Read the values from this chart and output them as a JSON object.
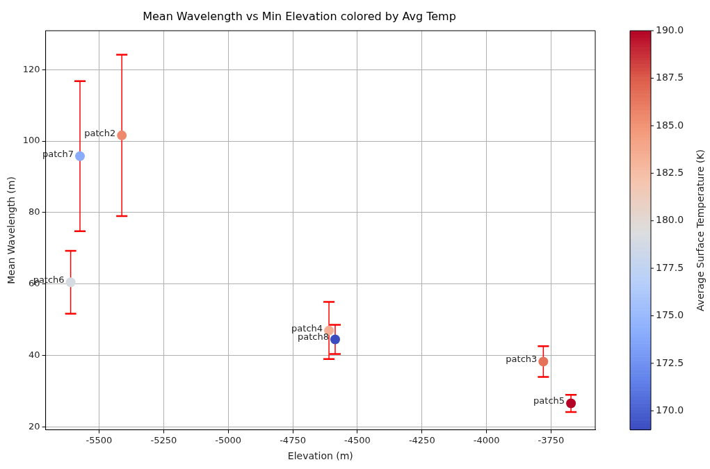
{
  "chart_data": {
    "type": "scatter",
    "title": "Mean Wavelength vs Min Elevation colored by Avg Temp",
    "xlabel": "Elevation (m)",
    "ylabel": "Mean Wavelength (m)",
    "clabel": "Average Surface Temperature (K)",
    "x": [
      -5412,
      -3780,
      -4610,
      -3673,
      -5610,
      -5574,
      -4586
    ],
    "values": [
      101.6,
      38.3,
      47.0,
      26.6,
      60.5,
      95.8,
      44.5
    ],
    "errors": [
      22.6,
      4.3,
      8.0,
      2.4,
      8.8,
      21.0,
      4.1
    ],
    "cvalues": [
      185.5,
      186.5,
      183.5,
      190,
      179,
      174,
      169
    ],
    "clim": [
      169,
      190
    ],
    "cticks": [
      {
        "value": 170,
        "label": "170.0"
      },
      172.5,
      {
        "value": 175,
        "label": "175.0"
      },
      177.5,
      {
        "value": 180,
        "label": "180.0"
      },
      182.5,
      {
        "value": 185,
        "label": "185.0"
      },
      187.5,
      {
        "value": 190,
        "label": "190.0"
      }
    ],
    "xlim": [
      -5707,
      -3579
    ],
    "ylim": [
      19.2,
      130.9
    ],
    "xticks": [
      -5500,
      -5250,
      -5000,
      -4750,
      -4500,
      -4250,
      -4000,
      -3750
    ],
    "yticks": [
      20,
      40,
      60,
      80,
      100,
      120
    ],
    "grid": true,
    "legend": false,
    "marker": "circle",
    "annotations": [
      {
        "text": "patch2",
        "x": -5412,
        "y": 101.6
      },
      {
        "text": "patch3",
        "x": -3780,
        "y": 38.3
      },
      {
        "text": "patch4",
        "x": -4610,
        "y": 47.0
      },
      {
        "text": "patch5",
        "x": -3673,
        "y": 26.6
      },
      {
        "text": "patch6",
        "x": -5610,
        "y": 60.5
      },
      {
        "text": "patch7",
        "x": -5574,
        "y": 95.8
      },
      {
        "text": "patch8",
        "x": -4586,
        "y": 44.5
      }
    ]
  }
}
